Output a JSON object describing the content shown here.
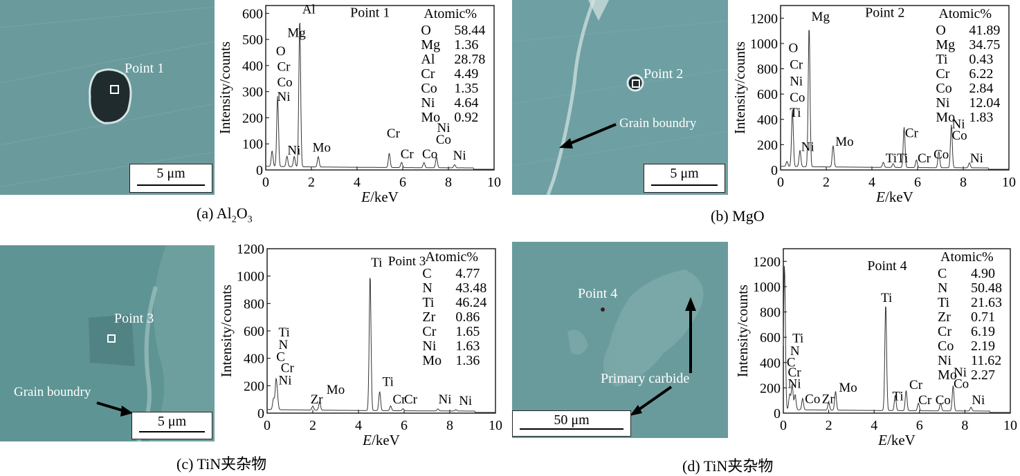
{
  "panels": [
    {
      "caption_prefix": "(a) Al",
      "caption_sub1": "2",
      "caption_mid": "O",
      "caption_sub2": "3",
      "point_label": "Point 1",
      "scale_label": "5 μm",
      "chart_data": {
        "type": "line",
        "title": "Point 1",
        "xlabel_italic": "E",
        "xlabel_rest": "/keV",
        "ylabel": "Intensity/counts",
        "xlim": [
          0,
          10
        ],
        "ylim": [
          0,
          630
        ],
        "xticks": [
          0,
          2,
          4,
          6,
          8,
          10
        ],
        "yticks": [
          0,
          100,
          200,
          300,
          400,
          500,
          600
        ],
        "peaks": [
          [
            0.28,
            60
          ],
          [
            0.52,
            270
          ],
          [
            0.93,
            40
          ],
          [
            1.25,
            40
          ],
          [
            1.49,
            570
          ],
          [
            2.3,
            40
          ],
          [
            5.41,
            55
          ],
          [
            5.95,
            20
          ],
          [
            6.93,
            20
          ],
          [
            7.48,
            40
          ],
          [
            8.27,
            12
          ]
        ],
        "peak_labels": [
          {
            "text": "Al",
            "x": 1.6,
            "y": 600
          },
          {
            "text": "Mg",
            "x": 0.95,
            "y": 510
          },
          {
            "text": "O",
            "x": 0.45,
            "y": 440
          },
          {
            "text": "Cr",
            "x": 0.5,
            "y": 380
          },
          {
            "text": "Co",
            "x": 0.5,
            "y": 320
          },
          {
            "text": "Ni",
            "x": 0.5,
            "y": 265
          },
          {
            "text": "Ni",
            "x": 0.95,
            "y": 60
          },
          {
            "text": "Mo",
            "x": 2.05,
            "y": 70
          },
          {
            "text": "Cr",
            "x": 5.3,
            "y": 125
          },
          {
            "text": "Cr",
            "x": 5.9,
            "y": 45
          },
          {
            "text": "Co",
            "x": 6.85,
            "y": 45
          },
          {
            "text": "Ni",
            "x": 7.5,
            "y": 145
          },
          {
            "text": "Co",
            "x": 7.45,
            "y": 100
          },
          {
            "text": "Ni",
            "x": 8.2,
            "y": 40
          }
        ],
        "atomic_header": "Atomic%",
        "composition": [
          {
            "element": "O",
            "value": "58.44"
          },
          {
            "element": "Mg",
            "value": "1.36"
          },
          {
            "element": "Al",
            "value": "28.78"
          },
          {
            "element": "Cr",
            "value": "4.49"
          },
          {
            "element": "Co",
            "value": "1.35"
          },
          {
            "element": "Ni",
            "value": "4.64"
          },
          {
            "element": "Mo",
            "value": "0.92"
          }
        ]
      }
    },
    {
      "caption": "(b) MgO",
      "point_label": "Point 2",
      "grain_label": "Grain boundry",
      "scale_label": "5 μm",
      "chart_data": {
        "type": "line",
        "title": "Point 2",
        "xlabel_italic": "E",
        "xlabel_rest": "/keV",
        "ylabel": "Intensity/counts",
        "xlim": [
          0,
          10
        ],
        "ylim": [
          0,
          1300
        ],
        "xticks": [
          0,
          2,
          4,
          6,
          8,
          10
        ],
        "yticks": [
          0,
          200,
          400,
          600,
          800,
          1000,
          1200
        ],
        "peaks": [
          [
            0.28,
            40
          ],
          [
            0.52,
            450
          ],
          [
            0.85,
            130
          ],
          [
            1.25,
            1120
          ],
          [
            2.3,
            170
          ],
          [
            4.5,
            40
          ],
          [
            4.93,
            30
          ],
          [
            5.41,
            320
          ],
          [
            5.95,
            60
          ],
          [
            6.93,
            130
          ],
          [
            7.48,
            340
          ],
          [
            8.27,
            40
          ]
        ],
        "peak_labels": [
          {
            "text": "Mg",
            "x": 1.35,
            "y": 1180
          },
          {
            "text": "O",
            "x": 0.35,
            "y": 930
          },
          {
            "text": "Cr",
            "x": 0.4,
            "y": 800
          },
          {
            "text": "Ni",
            "x": 0.4,
            "y": 670
          },
          {
            "text": "Co",
            "x": 0.4,
            "y": 540
          },
          {
            "text": "Ti",
            "x": 0.4,
            "y": 420
          },
          {
            "text": "Ni",
            "x": 0.9,
            "y": 150
          },
          {
            "text": "Mo",
            "x": 2.4,
            "y": 190
          },
          {
            "text": "TiTi",
            "x": 4.6,
            "y": 60
          },
          {
            "text": "Cr",
            "x": 5.45,
            "y": 260
          },
          {
            "text": "Cr",
            "x": 6.0,
            "y": 60
          },
          {
            "text": "Co",
            "x": 6.7,
            "y": 90
          },
          {
            "text": "Ni",
            "x": 7.5,
            "y": 330
          },
          {
            "text": "Co",
            "x": 7.5,
            "y": 240
          },
          {
            "text": "Ni",
            "x": 8.3,
            "y": 60
          }
        ],
        "atomic_header": "Atomic%",
        "composition": [
          {
            "element": "O",
            "value": "41.89"
          },
          {
            "element": "Mg",
            "value": "34.75"
          },
          {
            "element": "Ti",
            "value": "0.43"
          },
          {
            "element": "Cr",
            "value": "6.22"
          },
          {
            "element": "Co",
            "value": "2.84"
          },
          {
            "element": "Ni",
            "value": "12.04"
          },
          {
            "element": "Mo",
            "value": "1.83"
          }
        ]
      }
    },
    {
      "caption": "(c) TiN夹杂物",
      "point_label": "Point 3",
      "grain_label": "Grain boundry",
      "scale_label": "5 μm",
      "chart_data": {
        "type": "line",
        "title": "Point 3",
        "xlabel_italic": "E",
        "xlabel_rest": "/keV",
        "ylabel": "Intensity/counts",
        "xlim": [
          0,
          10
        ],
        "ylim": [
          0,
          1200
        ],
        "xticks": [
          0,
          2,
          4,
          6,
          8,
          10
        ],
        "yticks": [
          0,
          200,
          400,
          600,
          800,
          1000,
          1200
        ],
        "peaks": [
          [
            0.28,
            80
          ],
          [
            0.39,
            200
          ],
          [
            0.45,
            80
          ],
          [
            2.0,
            30
          ],
          [
            2.3,
            60
          ],
          [
            4.51,
            1000
          ],
          [
            4.93,
            140
          ],
          [
            5.41,
            35
          ],
          [
            5.95,
            15
          ],
          [
            7.48,
            15
          ],
          [
            8.27,
            10
          ]
        ],
        "peak_labels": [
          {
            "text": "Ti",
            "x": 4.55,
            "y": 1070
          },
          {
            "text": "Point 3",
            "x": 5.3,
            "y": 1080
          },
          {
            "text": "Ti",
            "x": 0.5,
            "y": 560
          },
          {
            "text": "N",
            "x": 0.5,
            "y": 470
          },
          {
            "text": "C",
            "x": 0.4,
            "y": 380
          },
          {
            "text": "Cr",
            "x": 0.6,
            "y": 300
          },
          {
            "text": "Ni",
            "x": 0.5,
            "y": 210
          },
          {
            "text": "Zr",
            "x": 1.9,
            "y": 70
          },
          {
            "text": "Mo",
            "x": 2.6,
            "y": 140
          },
          {
            "text": "Ti",
            "x": 5.05,
            "y": 200
          },
          {
            "text": "Cr",
            "x": 5.5,
            "y": 70
          },
          {
            "text": "Cr",
            "x": 6.0,
            "y": 70
          },
          {
            "text": "Ni",
            "x": 7.5,
            "y": 70
          },
          {
            "text": "Ni",
            "x": 8.4,
            "y": 60
          }
        ],
        "atomic_header": "Atomic%",
        "composition": [
          {
            "element": "C",
            "value": "4.77"
          },
          {
            "element": "N",
            "value": "43.48"
          },
          {
            "element": "Ti",
            "value": "46.24"
          },
          {
            "element": "Zr",
            "value": "0.86"
          },
          {
            "element": "Cr",
            "value": "1.65"
          },
          {
            "element": "Ni",
            "value": "1.63"
          },
          {
            "element": "Mo",
            "value": "1.36"
          }
        ]
      }
    },
    {
      "caption": "(d) TiN夹杂物",
      "point_label": "Point 4",
      "carbide_label": "Primary carbide",
      "scale_label": "50 μm",
      "chart_data": {
        "type": "line",
        "title": "Point 4",
        "xlabel_italic": "E",
        "xlabel_rest": "/keV",
        "ylabel": "Intensity/counts",
        "xlim": [
          0,
          10
        ],
        "ylim": [
          0,
          1300
        ],
        "xticks": [
          0,
          2,
          4,
          6,
          8,
          10
        ],
        "yticks": [
          0,
          200,
          400,
          600,
          800,
          1000,
          1200
        ],
        "peaks": [
          [
            0.05,
            1150
          ],
          [
            0.28,
            120
          ],
          [
            0.39,
            200
          ],
          [
            0.52,
            120
          ],
          [
            0.85,
            90
          ],
          [
            2.0,
            60
          ],
          [
            2.3,
            150
          ],
          [
            4.51,
            850
          ],
          [
            4.93,
            120
          ],
          [
            5.41,
            160
          ],
          [
            5.95,
            60
          ],
          [
            6.93,
            60
          ],
          [
            7.48,
            200
          ],
          [
            8.27,
            30
          ]
        ],
        "peak_labels": [
          {
            "text": "Ti",
            "x": 4.3,
            "y": 880
          },
          {
            "text": "Ti",
            "x": 0.4,
            "y": 560
          },
          {
            "text": "N",
            "x": 0.3,
            "y": 460
          },
          {
            "text": "C",
            "x": 0.15,
            "y": 370
          },
          {
            "text": "Cr",
            "x": 0.2,
            "y": 290
          },
          {
            "text": "Ni",
            "x": 0.2,
            "y": 200
          },
          {
            "text": "Co",
            "x": 0.95,
            "y": 80
          },
          {
            "text": "Zr",
            "x": 1.7,
            "y": 80
          },
          {
            "text": "Mo",
            "x": 2.45,
            "y": 170
          },
          {
            "text": "Cr",
            "x": 5.55,
            "y": 190
          },
          {
            "text": "Ti",
            "x": 4.8,
            "y": 100
          },
          {
            "text": "Cr",
            "x": 5.95,
            "y": 70
          },
          {
            "text": "Co",
            "x": 6.7,
            "y": 70
          },
          {
            "text": "Ni",
            "x": 7.5,
            "y": 290
          },
          {
            "text": "Co",
            "x": 7.5,
            "y": 200
          },
          {
            "text": "Ni",
            "x": 8.3,
            "y": 70
          }
        ],
        "atomic_header": "Atomic%",
        "composition": [
          {
            "element": "C",
            "value": "4.90"
          },
          {
            "element": "N",
            "value": "50.48"
          },
          {
            "element": "Ti",
            "value": "21.63"
          },
          {
            "element": "Zr",
            "value": "0.71"
          },
          {
            "element": "Cr",
            "value": "6.19"
          },
          {
            "element": "Co",
            "value": "2.19"
          },
          {
            "element": "Ni",
            "value": "11.62"
          },
          {
            "element": "Mo",
            "value": "2.27"
          }
        ]
      }
    }
  ]
}
